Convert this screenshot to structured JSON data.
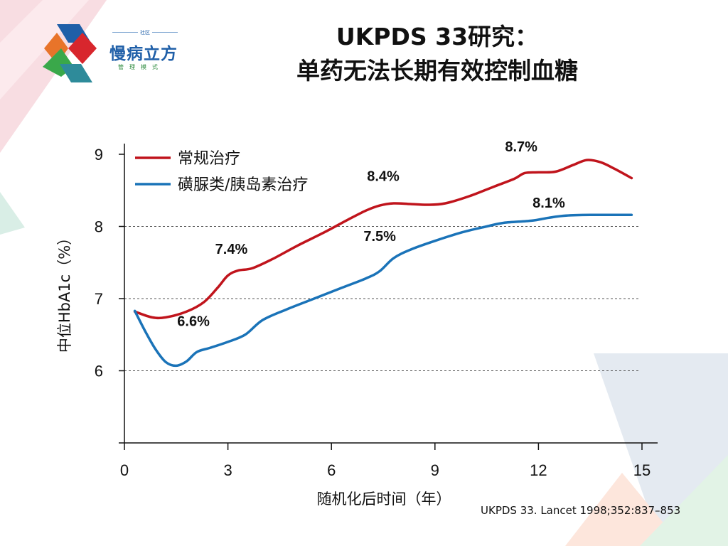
{
  "logo": {
    "top_text": "社区",
    "name": "慢病立方",
    "subtitle": "管理模式"
  },
  "title_line1": "UKPDS 33研究：",
  "title_line2": "单药无法长期有效控制血糖",
  "citation": "UKPDS 33. Lancet 1998;352:837–853",
  "colors": {
    "conventional": "#c0141c",
    "intensive": "#1a73b8"
  },
  "chart_data": {
    "type": "line",
    "xlabel": "随机化后时间（年）",
    "ylabel": "中位HbA1c（%）",
    "xlim": [
      0,
      15
    ],
    "ylim": [
      5,
      9
    ],
    "x_ticks": [
      0,
      3,
      6,
      9,
      12,
      15
    ],
    "y_ticks": [
      6,
      7,
      8,
      9
    ],
    "gridlines_y": [
      6,
      7,
      8
    ],
    "legend_position": "top-left",
    "series": [
      {
        "name": "常规治疗",
        "color": "#c0141c",
        "points": [
          [
            0.3,
            6.82
          ],
          [
            0.8,
            6.74
          ],
          [
            1.2,
            6.74
          ],
          [
            1.8,
            6.82
          ],
          [
            2.3,
            6.95
          ],
          [
            2.7,
            7.15
          ],
          [
            3.0,
            7.32
          ],
          [
            3.3,
            7.39
          ],
          [
            3.7,
            7.42
          ],
          [
            4.3,
            7.55
          ],
          [
            5.0,
            7.73
          ],
          [
            5.8,
            7.92
          ],
          [
            6.5,
            8.1
          ],
          [
            7.0,
            8.22
          ],
          [
            7.4,
            8.29
          ],
          [
            7.8,
            8.32
          ],
          [
            8.3,
            8.31
          ],
          [
            8.8,
            8.3
          ],
          [
            9.3,
            8.32
          ],
          [
            10.0,
            8.42
          ],
          [
            10.7,
            8.55
          ],
          [
            11.3,
            8.66
          ],
          [
            11.6,
            8.74
          ],
          [
            12.0,
            8.75
          ],
          [
            12.5,
            8.76
          ],
          [
            13.0,
            8.85
          ],
          [
            13.4,
            8.92
          ],
          [
            13.8,
            8.89
          ],
          [
            14.2,
            8.8
          ],
          [
            14.7,
            8.67
          ]
        ]
      },
      {
        "name": "磺脲类/胰岛素治疗",
        "color": "#1a73b8",
        "points": [
          [
            0.3,
            6.83
          ],
          [
            0.6,
            6.55
          ],
          [
            0.9,
            6.3
          ],
          [
            1.2,
            6.12
          ],
          [
            1.5,
            6.07
          ],
          [
            1.8,
            6.13
          ],
          [
            2.1,
            6.26
          ],
          [
            2.5,
            6.32
          ],
          [
            3.0,
            6.4
          ],
          [
            3.5,
            6.5
          ],
          [
            4.0,
            6.7
          ],
          [
            4.7,
            6.85
          ],
          [
            5.5,
            7.0
          ],
          [
            6.3,
            7.15
          ],
          [
            7.0,
            7.28
          ],
          [
            7.4,
            7.38
          ],
          [
            7.8,
            7.56
          ],
          [
            8.3,
            7.68
          ],
          [
            9.0,
            7.8
          ],
          [
            9.8,
            7.92
          ],
          [
            10.5,
            8.0
          ],
          [
            11.0,
            8.05
          ],
          [
            11.8,
            8.08
          ],
          [
            12.3,
            8.12
          ],
          [
            12.8,
            8.15
          ],
          [
            13.5,
            8.16
          ],
          [
            14.2,
            8.16
          ],
          [
            14.7,
            8.16
          ]
        ]
      }
    ],
    "annotations": [
      {
        "text": "6.6%",
        "x": 2.0,
        "y": 6.62
      },
      {
        "text": "7.4%",
        "x": 3.1,
        "y": 7.62
      },
      {
        "text": "7.5%",
        "x": 7.4,
        "y": 7.8
      },
      {
        "text": "8.4%",
        "x": 7.5,
        "y": 8.63
      },
      {
        "text": "8.1%",
        "x": 12.3,
        "y": 8.26
      },
      {
        "text": "8.7%",
        "x": 11.5,
        "y": 9.04
      }
    ]
  }
}
